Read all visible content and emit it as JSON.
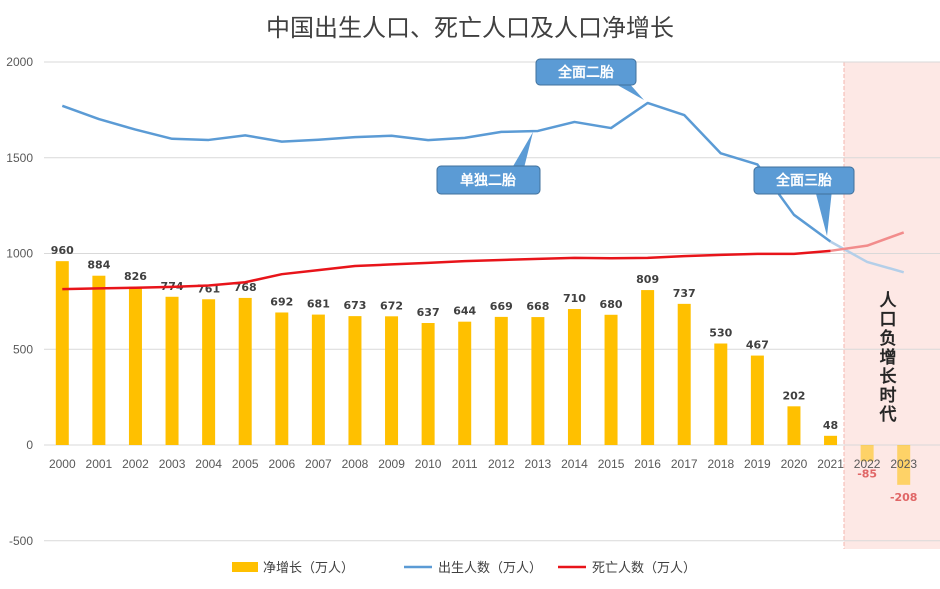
{
  "chart_data": {
    "type": "bar+line",
    "title": "中国出生人口、死亡人口及人口净增长",
    "x": [
      "2000",
      "2001",
      "2002",
      "2003",
      "2004",
      "2005",
      "2006",
      "2007",
      "2008",
      "2009",
      "2010",
      "2011",
      "2012",
      "2013",
      "2014",
      "2015",
      "2016",
      "2017",
      "2018",
      "2019",
      "2020",
      "2021",
      "2022",
      "2023"
    ],
    "ylim": [
      -500,
      2000
    ],
    "yticks": [
      -500,
      0,
      500,
      1000,
      1500,
      2000
    ],
    "grid": true,
    "legend_position": "bottom",
    "series": [
      {
        "name": "净增长（万人）",
        "type": "bar",
        "color": "#ffc000",
        "values": [
          960,
          884,
          826,
          774,
          761,
          768,
          692,
          681,
          673,
          672,
          637,
          644,
          669,
          668,
          710,
          680,
          809,
          737,
          530,
          467,
          202,
          48,
          -85,
          -208
        ]
      },
      {
        "name": "出生人数（万人）",
        "type": "line",
        "color": "#5b9bd5",
        "values": [
          1771,
          1702,
          1647,
          1599,
          1593,
          1617,
          1584,
          1594,
          1608,
          1615,
          1592,
          1604,
          1635,
          1640,
          1687,
          1655,
          1786,
          1723,
          1523,
          1465,
          1202,
          1062,
          956,
          902
        ]
      },
      {
        "name": "死亡人数（万人）",
        "type": "line",
        "color": "#e8141a",
        "values": [
          814,
          818,
          821,
          826,
          833,
          850,
          892,
          913,
          935,
          943,
          951,
          960,
          966,
          972,
          977,
          975,
          977,
          986,
          993,
          998,
          998,
          1014,
          1041,
          1110
        ]
      }
    ],
    "projected_from": "2021",
    "annotations": [
      {
        "text": "单独二胎",
        "year": "2013"
      },
      {
        "text": "全面二胎",
        "year": "2016"
      },
      {
        "text": "全面三胎",
        "year": "2021"
      }
    ],
    "shaded_region_label": "人口负增长时代"
  }
}
